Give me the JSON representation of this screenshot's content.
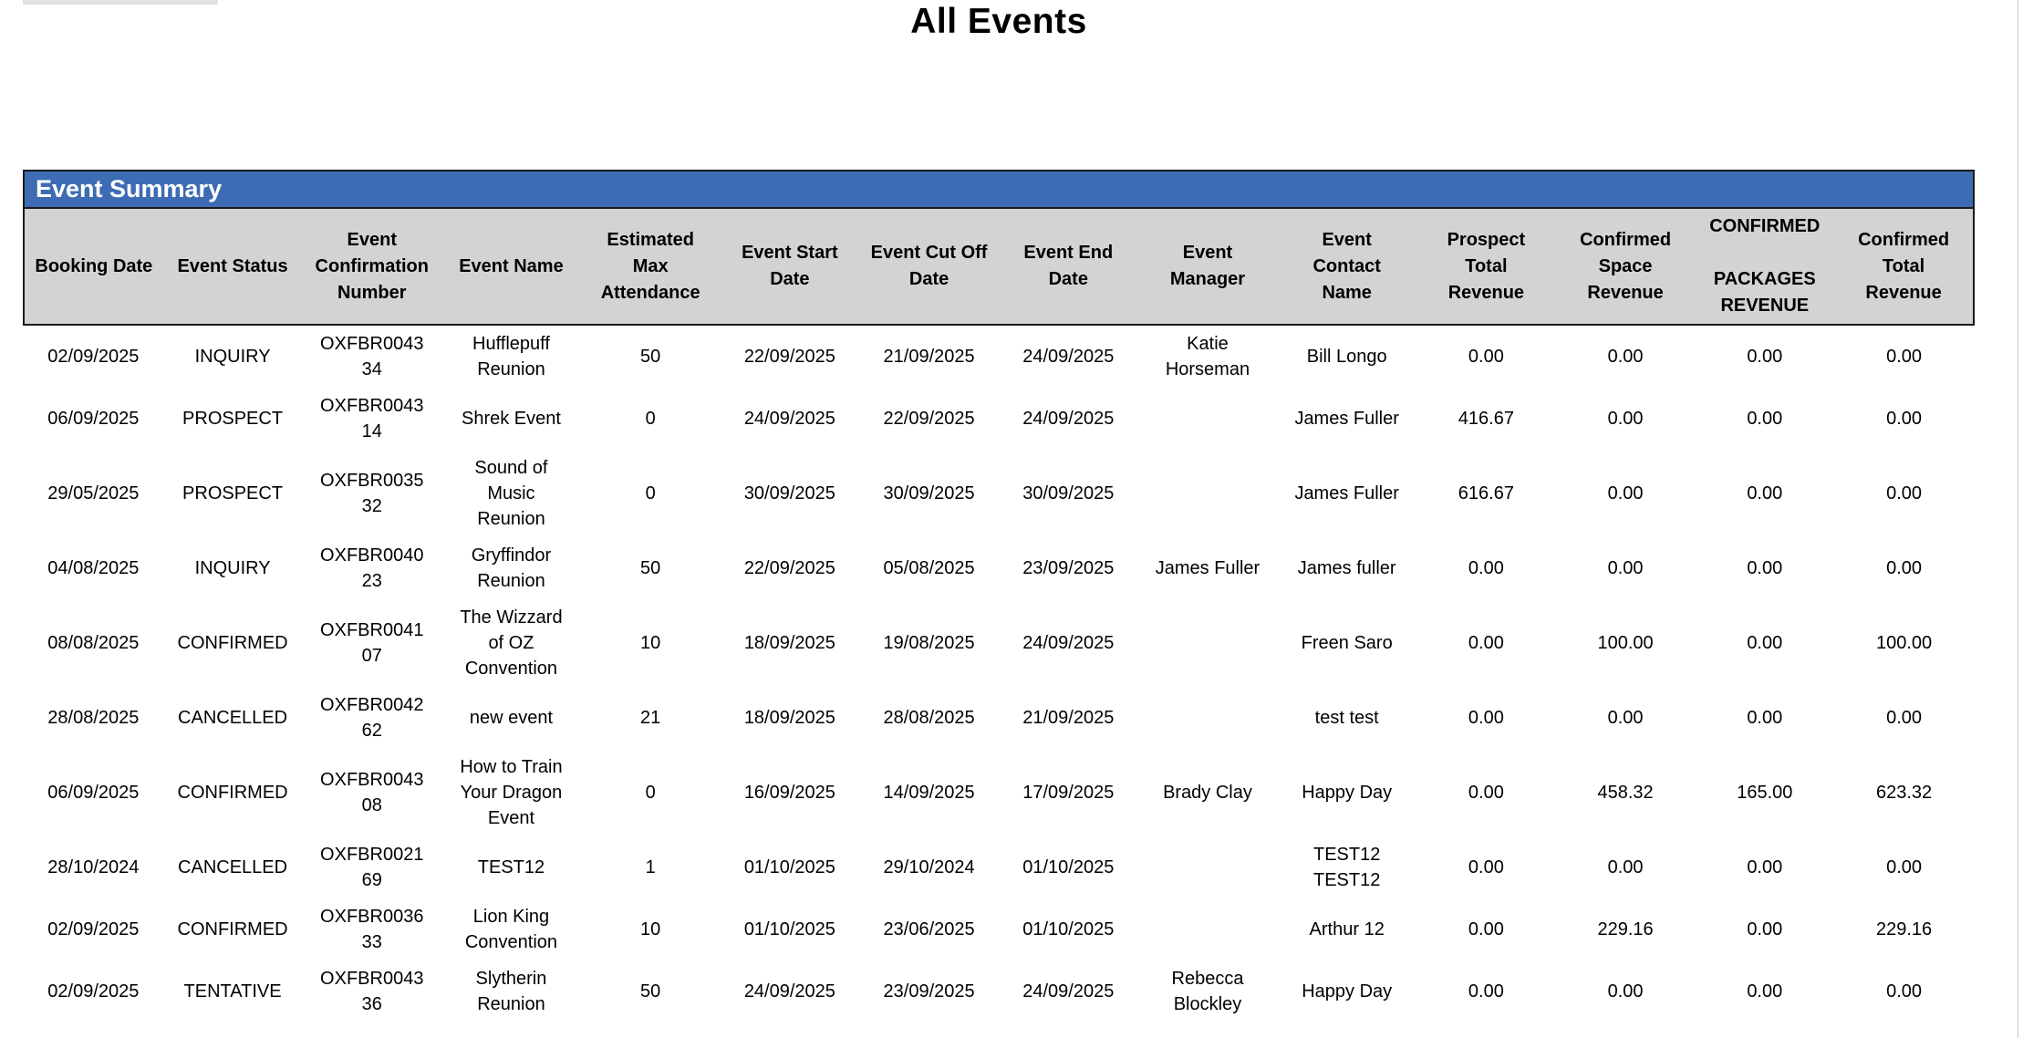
{
  "page": {
    "title": "All Events"
  },
  "colors": {
    "summary_bar_bg": "#3d6cb4",
    "summary_bar_text": "#ffffff",
    "header_row_bg": "#d3d3d4",
    "table_border": "#1a1a1a"
  },
  "summary": {
    "section_title": "Event Summary"
  },
  "table": {
    "columns": [
      "Booking Date",
      "Event Status",
      "Event Confirmation Number",
      "Event Name",
      "Estimated Max Attendance",
      "Event Start Date",
      "Event Cut Off Date",
      "Event End Date",
      "Event Manager",
      "Event Contact Name",
      "Prospect Total Revenue",
      "Confirmed Space Revenue",
      "CONFIRMED\n\nPACKAGES REVENUE",
      "Confirmed Total Revenue"
    ],
    "rows": [
      [
        "02/09/2025",
        "INQUIRY",
        "OXFBR004334",
        "Hufflepuff Reunion",
        "50",
        "22/09/2025",
        "21/09/2025",
        "24/09/2025",
        "Katie Horseman",
        "Bill Longo",
        "0.00",
        "0.00",
        "0.00",
        "0.00"
      ],
      [
        "06/09/2025",
        "PROSPECT",
        "OXFBR004314",
        "Shrek Event",
        "0",
        "24/09/2025",
        "22/09/2025",
        "24/09/2025",
        "",
        "James Fuller",
        "416.67",
        "0.00",
        "0.00",
        "0.00"
      ],
      [
        "29/05/2025",
        "PROSPECT",
        "OXFBR003532",
        "Sound of Music Reunion",
        "0",
        "30/09/2025",
        "30/09/2025",
        "30/09/2025",
        "",
        "James Fuller",
        "616.67",
        "0.00",
        "0.00",
        "0.00"
      ],
      [
        "04/08/2025",
        "INQUIRY",
        "OXFBR004023",
        "Gryffindor Reunion",
        "50",
        "22/09/2025",
        "05/08/2025",
        "23/09/2025",
        "James Fuller",
        "James fuller",
        "0.00",
        "0.00",
        "0.00",
        "0.00"
      ],
      [
        "08/08/2025",
        "CONFIRMED",
        "OXFBR004107",
        "The Wizzard of OZ Convention",
        "10",
        "18/09/2025",
        "19/08/2025",
        "24/09/2025",
        "",
        "Freen Saro",
        "0.00",
        "100.00",
        "0.00",
        "100.00"
      ],
      [
        "28/08/2025",
        "CANCELLED",
        "OXFBR004262",
        "new event",
        "21",
        "18/09/2025",
        "28/08/2025",
        "21/09/2025",
        "",
        "test test",
        "0.00",
        "0.00",
        "0.00",
        "0.00"
      ],
      [
        "06/09/2025",
        "CONFIRMED",
        "OXFBR004308",
        "How to Train Your Dragon Event",
        "0",
        "16/09/2025",
        "14/09/2025",
        "17/09/2025",
        "Brady Clay",
        "Happy Day",
        "0.00",
        "458.32",
        "165.00",
        "623.32"
      ],
      [
        "28/10/2024",
        "CANCELLED",
        "OXFBR002169",
        "TEST12",
        "1",
        "01/10/2025",
        "29/10/2024",
        "01/10/2025",
        "",
        "TEST12 TEST12",
        "0.00",
        "0.00",
        "0.00",
        "0.00"
      ],
      [
        "02/09/2025",
        "CONFIRMED",
        "OXFBR003633",
        "Lion King Convention",
        "10",
        "01/10/2025",
        "23/06/2025",
        "01/10/2025",
        "",
        "Arthur 12",
        "0.00",
        "229.16",
        "0.00",
        "229.16"
      ],
      [
        "02/09/2025",
        "TENTATIVE",
        "OXFBR004336",
        "Slytherin Reunion",
        "50",
        "24/09/2025",
        "23/09/2025",
        "24/09/2025",
        "Rebecca Blockley",
        "Happy Day",
        "0.00",
        "0.00",
        "0.00",
        "0.00"
      ]
    ]
  }
}
